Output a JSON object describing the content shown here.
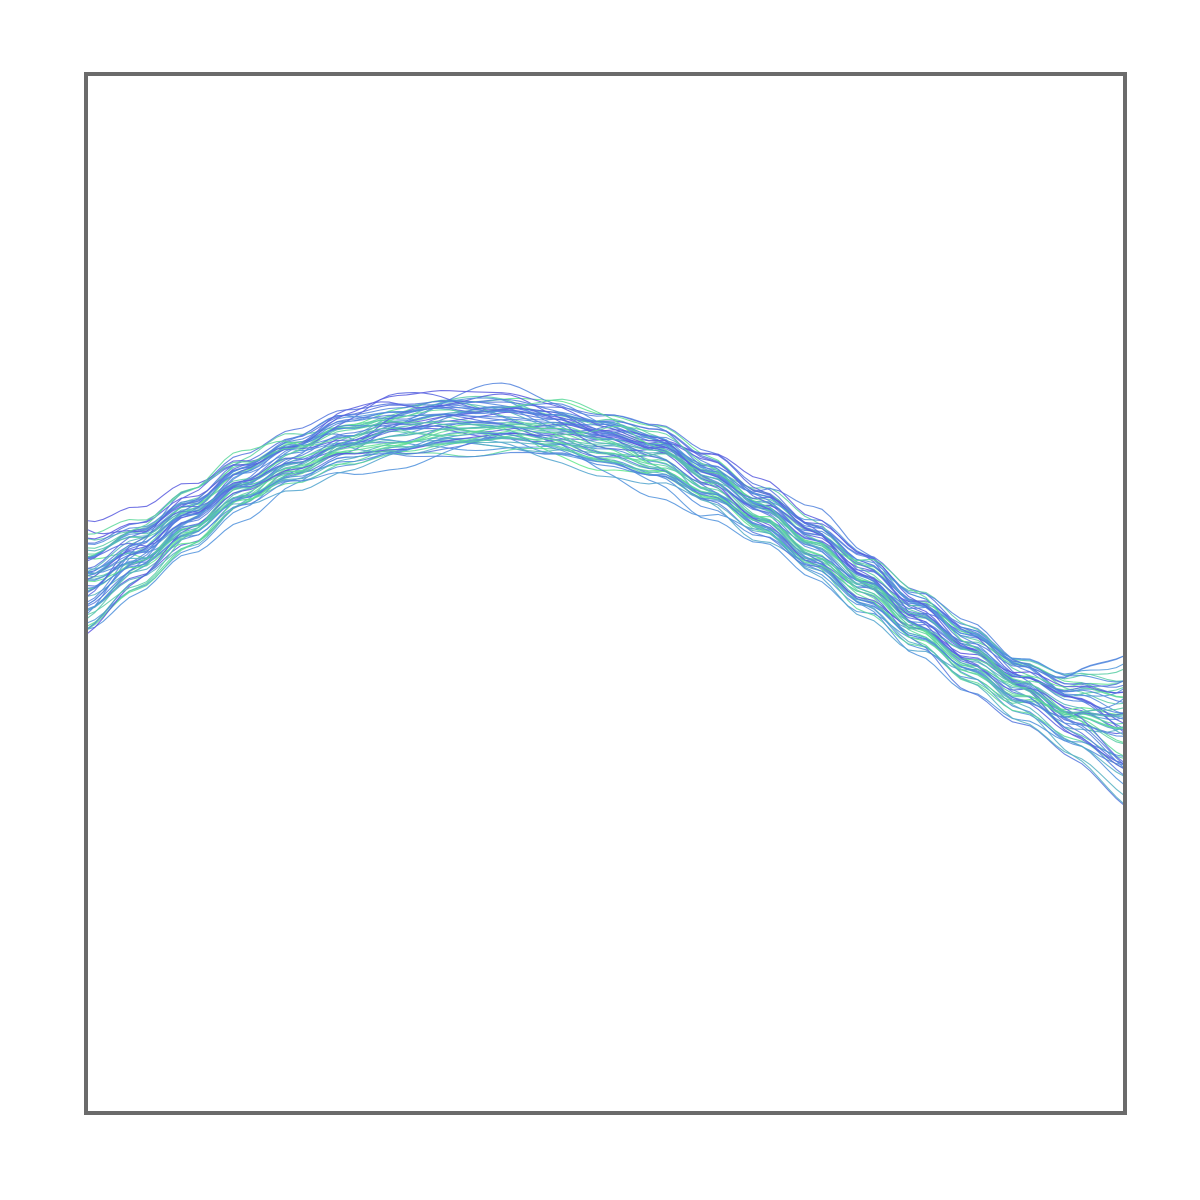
{
  "chart_data": {
    "type": "line",
    "title": "",
    "xlabel": "",
    "ylabel": "",
    "xlim": [
      0,
      1
    ],
    "ylim": [
      -1.5,
      1.5
    ],
    "grid": false,
    "legend": "none",
    "series_count": 60,
    "x": [
      0.0,
      0.05,
      0.1,
      0.15,
      0.2,
      0.25,
      0.3,
      0.35,
      0.4,
      0.45,
      0.5,
      0.55,
      0.6,
      0.65,
      0.7,
      0.75,
      0.8,
      0.85,
      0.9,
      0.95,
      1.0
    ],
    "center_curve": [
      0.03,
      0.11,
      0.21,
      0.31,
      0.38,
      0.44,
      0.47,
      0.49,
      0.49,
      0.47,
      0.44,
      0.4,
      0.32,
      0.23,
      0.13,
      0.03,
      -0.08,
      -0.18,
      -0.27,
      -0.35,
      -0.4
    ],
    "spread": 0.08,
    "colors": {
      "frame": "#6b6b6b",
      "series_gradient": [
        "#5a52e0",
        "#4d95dc",
        "#5fe88a"
      ]
    }
  }
}
